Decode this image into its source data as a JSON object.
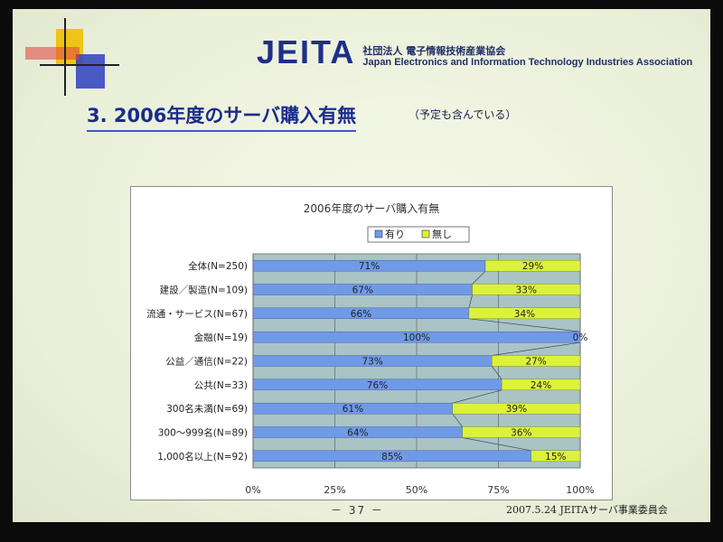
{
  "header": {
    "brand": "JEITA",
    "org_jp": "社団法人 電子情報技術産業協会",
    "org_en": "Japan Electronics and Information Technology Industries Association"
  },
  "slide": {
    "title": "3. 2006年度のサーバ購入有無",
    "subtitle": "（予定も含んでいる）"
  },
  "footer": {
    "page": "－ 37 －",
    "right": "2007.5.24 JEITAサーバ事業委員会"
  },
  "colors": {
    "yes": "#6f9ae8",
    "no": "#dcf23a",
    "plot_bg": "#a9c4c4",
    "title_blue": "#1a2c8c"
  },
  "chart_data": {
    "type": "bar",
    "orientation": "horizontal",
    "stacked": "percent",
    "title": "2006年度のサーバ購入有無",
    "categories": [
      "全体(N=250)",
      "建設／製造(N=109)",
      "流通・サービス(N=67)",
      "金融(N=19)",
      "公益／通信(N=22)",
      "公共(N=33)",
      "300名未満(N=69)",
      "300～999名(N=89)",
      "1,000名以上(N=92)"
    ],
    "series": [
      {
        "name": "有り",
        "values": [
          71,
          67,
          66,
          100,
          73,
          76,
          61,
          64,
          85
        ],
        "labels": [
          "71%",
          "67%",
          "66%",
          "100%",
          "73%",
          "76%",
          "61%",
          "64%",
          "85%"
        ]
      },
      {
        "name": "無し",
        "values": [
          29,
          33,
          34,
          0,
          27,
          24,
          39,
          36,
          15
        ],
        "labels": [
          "29%",
          "33%",
          "34%",
          "0%",
          "27%",
          "24%",
          "39%",
          "36%",
          "15%"
        ]
      }
    ],
    "xlim": [
      0,
      100
    ],
    "x_ticks": [
      "0%",
      "25%",
      "50%",
      "75%",
      "100%"
    ],
    "legend_position": "top",
    "grid": true,
    "series_lines": true
  }
}
